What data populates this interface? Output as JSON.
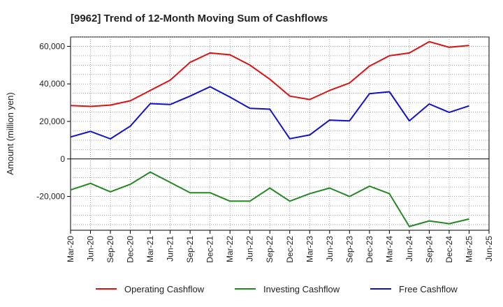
{
  "chart_data": {
    "type": "line",
    "title": "[9962]  Trend of 12-Month Moving Sum of Cashflows",
    "xlabel": "",
    "ylabel": "Amount (million yen)",
    "categories": [
      "Mar-20",
      "Jun-20",
      "Sep-20",
      "Dec-20",
      "Mar-21",
      "Jun-21",
      "Sep-21",
      "Dec-21",
      "Mar-22",
      "Jun-22",
      "Sep-22",
      "Dec-22",
      "Mar-23",
      "Jun-23",
      "Sep-23",
      "Dec-23",
      "Mar-24",
      "Jun-24",
      "Sep-24",
      "Dec-24",
      "Mar-25",
      "Jun-25"
    ],
    "ylim": [
      -38000,
      65000
    ],
    "yticks": [
      -20000,
      0,
      20000,
      40000,
      60000
    ],
    "ytick_labels": [
      "-20,000",
      "0",
      "20,000",
      "40,000",
      "60,000"
    ],
    "grid": true,
    "legend_position": "bottom",
    "series": [
      {
        "name": "Operating Cashflow",
        "color": "#dd1111",
        "values": [
          28500,
          28000,
          28700,
          31000,
          36500,
          42000,
          51500,
          56500,
          55500,
          50000,
          42500,
          33500,
          31700,
          36500,
          40500,
          49500,
          55000,
          56500,
          62500,
          59500,
          60500,
          null
        ]
      },
      {
        "name": "Investing Cashflow",
        "color": "#228822",
        "values": [
          -16500,
          -13000,
          -17500,
          -13500,
          -7000,
          -12500,
          -18000,
          -18000,
          -22500,
          -22500,
          -15500,
          -22500,
          -18500,
          -15500,
          -20000,
          -14500,
          -18500,
          -36000,
          -33000,
          -34500,
          -32000,
          null
        ]
      },
      {
        "name": "Free Cashflow",
        "color": "#1111cc",
        "values": [
          11700,
          14700,
          10700,
          17500,
          29500,
          29000,
          33500,
          38500,
          33000,
          27000,
          26500,
          10800,
          12800,
          20700,
          20300,
          34800,
          35800,
          20300,
          29300,
          24800,
          28300,
          null
        ]
      }
    ]
  }
}
